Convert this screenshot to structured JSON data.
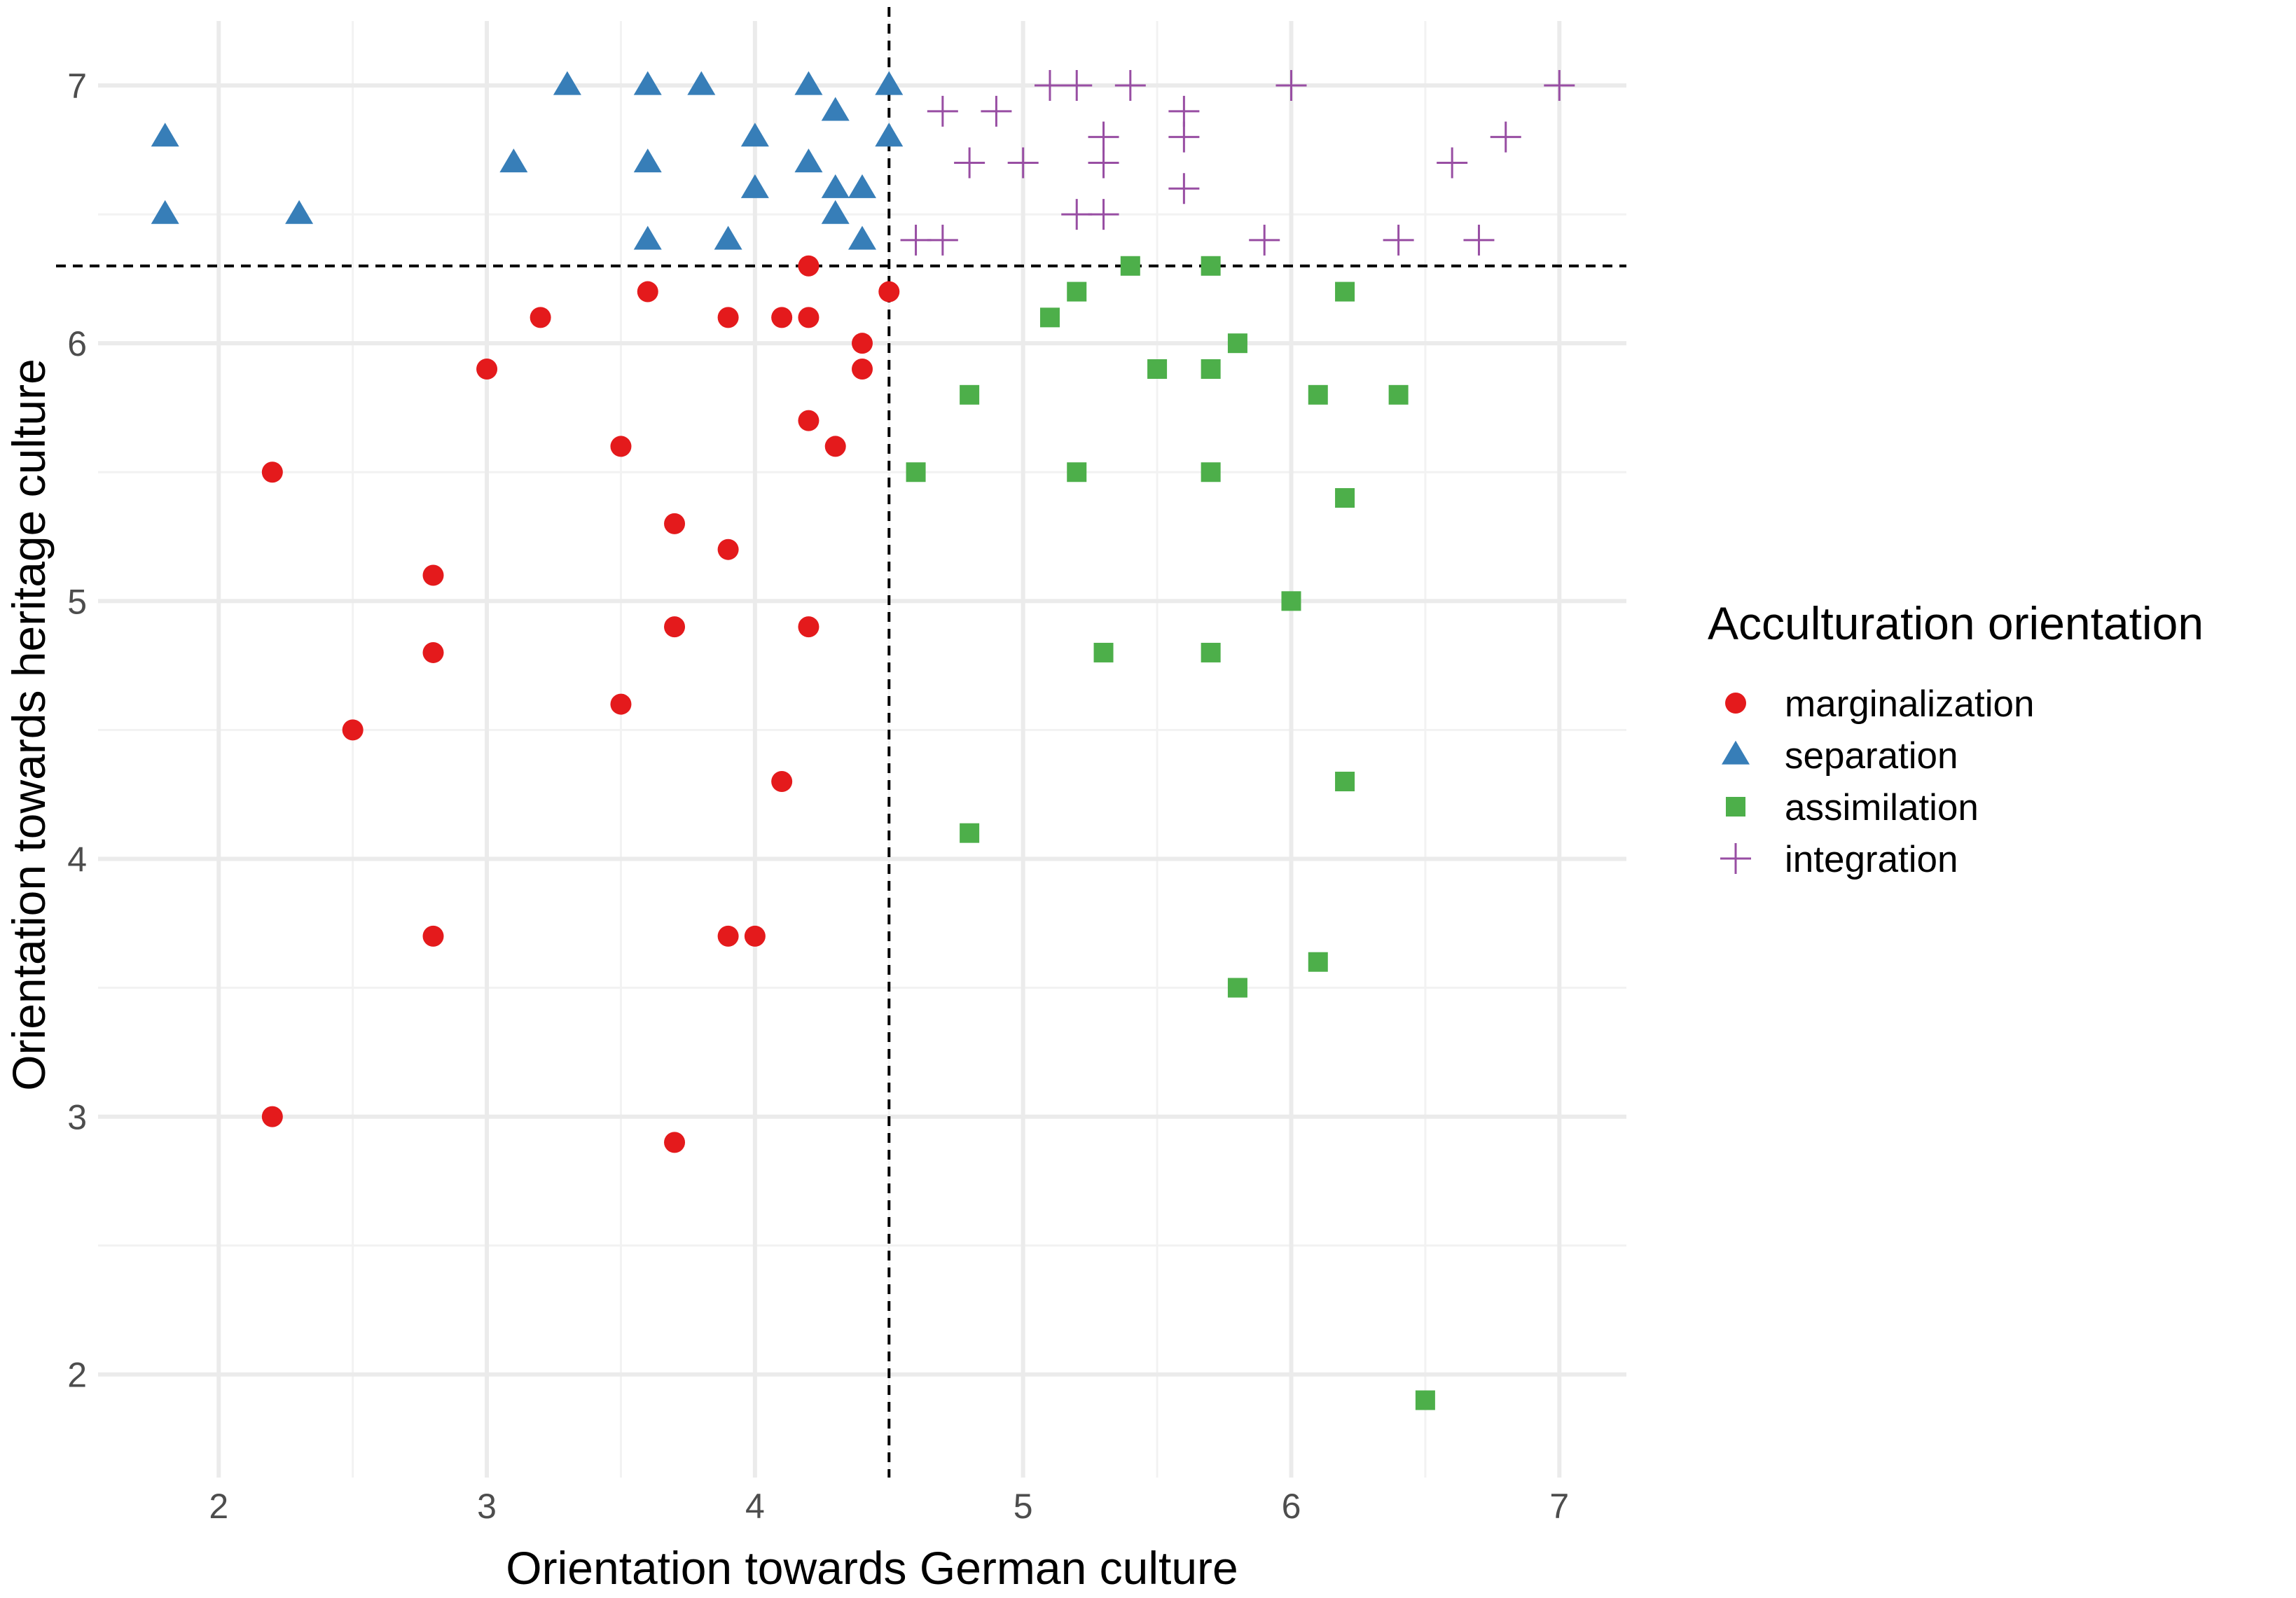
{
  "chart_data": {
    "type": "scatter",
    "title": "",
    "xlabel": "Orientation towards German culture",
    "ylabel": "Orientation towards heritage culture",
    "xlim": [
      1.55,
      7.25
    ],
    "ylim": [
      1.6,
      7.25
    ],
    "x_ticks": [
      "2",
      "3",
      "4",
      "5",
      "6",
      "7"
    ],
    "y_ticks": [
      "2",
      "3",
      "4",
      "5",
      "6",
      "7"
    ],
    "grid": true,
    "reference_lines": {
      "vertical_x": 4.5,
      "horizontal_y": 6.3,
      "style": "dashed"
    },
    "legend": {
      "title": "Acculturation orientation",
      "position": "right",
      "entries": [
        "marginalization",
        "separation",
        "assimilation",
        "integration"
      ]
    },
    "series": [
      {
        "name": "marginalization",
        "marker": "circle",
        "color": "#E41A1C",
        "points": [
          [
            2.2,
            5.5
          ],
          [
            2.2,
            3.0
          ],
          [
            2.5,
            4.5
          ],
          [
            2.8,
            5.1
          ],
          [
            2.8,
            4.8
          ],
          [
            2.8,
            3.7
          ],
          [
            3.0,
            5.9
          ],
          [
            3.2,
            6.1
          ],
          [
            3.5,
            5.6
          ],
          [
            3.5,
            4.6
          ],
          [
            3.6,
            6.2
          ],
          [
            3.7,
            5.3
          ],
          [
            3.7,
            4.9
          ],
          [
            3.7,
            2.9
          ],
          [
            3.9,
            6.1
          ],
          [
            3.9,
            5.2
          ],
          [
            3.9,
            3.7
          ],
          [
            4.0,
            3.7
          ],
          [
            4.1,
            6.1
          ],
          [
            4.1,
            4.3
          ],
          [
            4.2,
            6.3
          ],
          [
            4.2,
            6.1
          ],
          [
            4.2,
            5.7
          ],
          [
            4.2,
            4.9
          ],
          [
            4.3,
            5.6
          ],
          [
            4.4,
            6.0
          ],
          [
            4.4,
            5.9
          ],
          [
            4.5,
            6.2
          ]
        ]
      },
      {
        "name": "separation",
        "marker": "triangle",
        "color": "#377EB8",
        "points": [
          [
            1.8,
            6.8
          ],
          [
            1.8,
            6.5
          ],
          [
            2.3,
            6.5
          ],
          [
            3.1,
            6.7
          ],
          [
            3.3,
            7.0
          ],
          [
            3.6,
            7.0
          ],
          [
            3.6,
            6.7
          ],
          [
            3.6,
            6.4
          ],
          [
            3.8,
            7.0
          ],
          [
            3.9,
            6.4
          ],
          [
            4.0,
            6.8
          ],
          [
            4.0,
            6.6
          ],
          [
            4.2,
            7.0
          ],
          [
            4.2,
            6.7
          ],
          [
            4.3,
            6.9
          ],
          [
            4.3,
            6.6
          ],
          [
            4.3,
            6.5
          ],
          [
            4.4,
            6.6
          ],
          [
            4.4,
            6.4
          ],
          [
            4.5,
            7.0
          ],
          [
            4.5,
            6.8
          ]
        ]
      },
      {
        "name": "assimilation",
        "marker": "square",
        "color": "#4DAF4A",
        "points": [
          [
            4.6,
            5.5
          ],
          [
            4.8,
            5.8
          ],
          [
            4.8,
            4.1
          ],
          [
            5.1,
            6.1
          ],
          [
            5.2,
            6.2
          ],
          [
            5.2,
            5.5
          ],
          [
            5.3,
            4.8
          ],
          [
            5.4,
            6.3
          ],
          [
            5.5,
            5.9
          ],
          [
            5.7,
            6.3
          ],
          [
            5.7,
            5.9
          ],
          [
            5.7,
            5.5
          ],
          [
            5.7,
            4.8
          ],
          [
            5.8,
            6.0
          ],
          [
            5.8,
            3.5
          ],
          [
            6.0,
            5.0
          ],
          [
            6.1,
            5.8
          ],
          [
            6.1,
            3.6
          ],
          [
            6.2,
            6.2
          ],
          [
            6.2,
            5.4
          ],
          [
            6.2,
            4.3
          ],
          [
            6.4,
            5.8
          ],
          [
            6.5,
            1.9
          ]
        ]
      },
      {
        "name": "integration",
        "marker": "plus",
        "color": "#984EA3",
        "points": [
          [
            4.6,
            6.4
          ],
          [
            4.7,
            6.9
          ],
          [
            4.7,
            6.4
          ],
          [
            4.8,
            6.7
          ],
          [
            4.9,
            6.9
          ],
          [
            5.0,
            6.7
          ],
          [
            5.1,
            7.0
          ],
          [
            5.2,
            7.0
          ],
          [
            5.2,
            6.5
          ],
          [
            5.3,
            6.8
          ],
          [
            5.3,
            6.7
          ],
          [
            5.3,
            6.5
          ],
          [
            5.4,
            7.0
          ],
          [
            5.6,
            6.9
          ],
          [
            5.6,
            6.8
          ],
          [
            5.6,
            6.6
          ],
          [
            5.9,
            6.4
          ],
          [
            6.0,
            7.0
          ],
          [
            6.4,
            6.4
          ],
          [
            6.6,
            6.7
          ],
          [
            6.7,
            6.4
          ],
          [
            6.8,
            6.8
          ],
          [
            7.0,
            7.0
          ]
        ]
      }
    ]
  }
}
